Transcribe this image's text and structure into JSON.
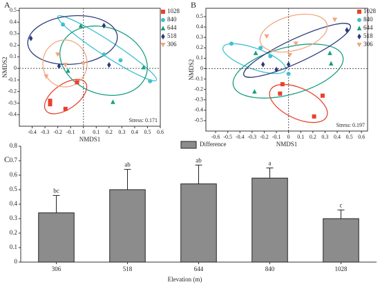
{
  "chart_data": [
    {
      "type": "scatter",
      "panel": "A",
      "xlabel": "NMDS1",
      "ylabel": "NMDS2",
      "annotation": "Stress: 0.171",
      "xlim": [
        -0.5,
        0.6
      ],
      "ylim": [
        -0.5,
        0.52
      ],
      "xticks": [
        -0.4,
        -0.3,
        -0.2,
        -0.1,
        0,
        0.1,
        0.2,
        0.3,
        0.4,
        0.5,
        0.6
      ],
      "yticks": [
        -0.4,
        -0.3,
        -0.2,
        -0.1,
        0,
        0.1,
        0.2,
        0.3,
        0.4,
        0.5
      ],
      "series": [
        {
          "name": "1028",
          "color": "#e8412c",
          "marker": "square",
          "x": [
            -0.26,
            -0.26,
            -0.14,
            -0.05
          ],
          "y": [
            -0.28,
            -0.31,
            -0.35,
            -0.12
          ]
        },
        {
          "name": "840",
          "color": "#3fc0d0",
          "marker": "circle",
          "x": [
            -0.16,
            0.16,
            0.29,
            0.52
          ],
          "y": [
            0.38,
            0.12,
            0.07,
            -0.11
          ]
        },
        {
          "name": "644",
          "color": "#1a9e7e",
          "marker": "triangle",
          "x": [
            -0.02,
            -0.12,
            0.23,
            0.47
          ],
          "y": [
            0.37,
            -0.02,
            -0.29,
            0.01
          ]
        },
        {
          "name": "518",
          "color": "#2b3a7a",
          "marker": "diamond",
          "x": [
            -0.41,
            -0.19,
            0.16,
            0.2
          ],
          "y": [
            0.26,
            0.02,
            0.37,
            0.03
          ]
        },
        {
          "name": "306",
          "color": "#f4a582",
          "marker": "triangle-down",
          "x": [
            -0.29,
            -0.2,
            -0.14,
            0.0
          ],
          "y": [
            -0.07,
            0.12,
            0.03,
            0.04
          ]
        }
      ]
    },
    {
      "type": "scatter",
      "panel": "B",
      "xlabel": "NMDS1",
      "ylabel": "NMDS2",
      "annotation": "Stress: 0.197",
      "xlim": [
        -0.68,
        0.65
      ],
      "ylim": [
        -0.6,
        0.58
      ],
      "xticks": [
        -0.6,
        -0.5,
        -0.4,
        -0.3,
        -0.2,
        -0.1,
        0,
        0.1,
        0.2,
        0.3,
        0.4,
        0.5,
        0.6
      ],
      "yticks": [
        -0.5,
        -0.4,
        -0.3,
        -0.2,
        -0.1,
        0,
        0.1,
        0.2,
        0.3,
        0.4,
        0.5
      ],
      "series": [
        {
          "name": "1028",
          "color": "#e8412c",
          "marker": "square",
          "x": [
            -0.05,
            -0.07,
            0.28,
            0.21
          ],
          "y": [
            -0.15,
            -0.24,
            -0.26,
            -0.46
          ]
        },
        {
          "name": "840",
          "color": "#3fc0d0",
          "marker": "circle",
          "x": [
            -0.47,
            -0.23,
            0.0,
            -0.15
          ],
          "y": [
            0.24,
            0.2,
            -0.05,
            0.12
          ]
        },
        {
          "name": "644",
          "color": "#1a9e7e",
          "marker": "triangle",
          "x": [
            -0.27,
            -0.28,
            0.34,
            0.35
          ],
          "y": [
            0.15,
            -0.22,
            0.15,
            0.05
          ]
        },
        {
          "name": "518",
          "color": "#2b3a7a",
          "marker": "diamond",
          "x": [
            -0.21,
            -0.1,
            0.0,
            0.48
          ],
          "y": [
            0.04,
            -0.01,
            0.04,
            0.37
          ]
        },
        {
          "name": "306",
          "color": "#f4a582",
          "marker": "triangle-down",
          "x": [
            -0.18,
            0.06,
            0.01,
            0.38
          ],
          "y": [
            0.31,
            0.24,
            0.13,
            0.47
          ]
        }
      ]
    },
    {
      "type": "bar",
      "panel": "C",
      "xlabel": "Elevation (m)",
      "categories": [
        "306",
        "518",
        "644",
        "840",
        "1028"
      ],
      "series": [
        {
          "name": "Difference",
          "color": "#8c8c8c",
          "values": [
            0.34,
            0.5,
            0.54,
            0.58,
            0.3
          ],
          "errors": [
            0.12,
            0.14,
            0.13,
            0.07,
            0.06
          ]
        }
      ],
      "annotations": [
        "bc",
        "ab",
        "ab",
        "a",
        "c"
      ],
      "ylim": [
        0,
        0.8
      ],
      "yticks": [
        0,
        0.1,
        0.2,
        0.3,
        0.4,
        0.5,
        0.6,
        0.7,
        0.8
      ]
    }
  ]
}
